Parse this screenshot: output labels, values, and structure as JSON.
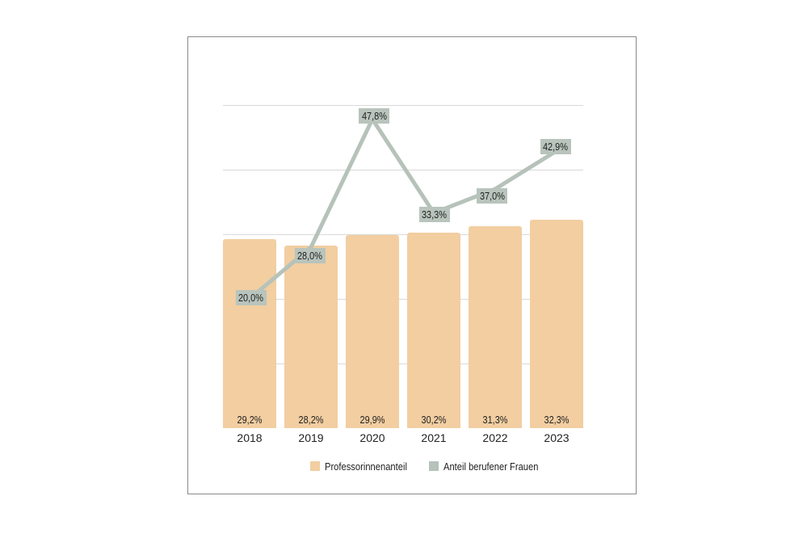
{
  "page": {
    "background": "#ffffff"
  },
  "chart_data": {
    "type": "bar",
    "title": "",
    "xlabel": "",
    "ylabel": "",
    "categories": [
      "2018",
      "2019",
      "2020",
      "2021",
      "2022",
      "2023"
    ],
    "series": [
      {
        "name": "Professorinnenanteil",
        "type": "bar",
        "color": "#f2cea1",
        "values": [
          29.2,
          28.2,
          29.9,
          30.2,
          31.3,
          32.3
        ],
        "labels": [
          "29,2%",
          "28,2%",
          "29,9%",
          "30,2%",
          "31,3%",
          "32,3%"
        ]
      },
      {
        "name": "Anteil berufener Frauen",
        "type": "line",
        "color": "#b6c2ba",
        "values": [
          20.0,
          28.0,
          47.8,
          33.3,
          37.0,
          42.9
        ],
        "labels": [
          "20,0%",
          "28,0%",
          "47,8%",
          "33,3%",
          "37,0%",
          "42,9%"
        ],
        "label_box_color": "#b9c4bc",
        "label_offsets": [
          [
            1.5,
            -1.5
          ],
          [
            -1.5,
            10.5
          ],
          [
            2,
            -4
          ],
          [
            0.5,
            2
          ],
          [
            -4,
            8.5
          ],
          [
            -1.5,
            -5.5
          ]
        ]
      }
    ],
    "ylim": [
      0,
      55.6
    ],
    "grid": true,
    "gridlines_percent": [
      10,
      20,
      30,
      40,
      50
    ],
    "legend_position": "bottom"
  },
  "colors": {
    "frame_border": "#8a8a8a",
    "gridline": "#d9d9d9",
    "text": "#222222",
    "background": "#ffffff"
  }
}
